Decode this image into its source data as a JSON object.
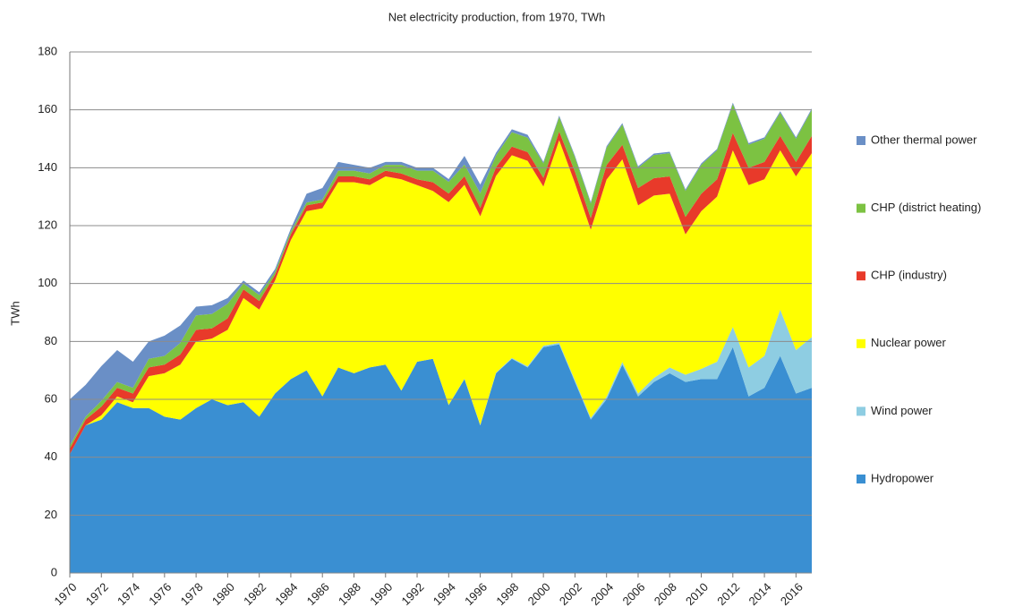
{
  "chart_data": {
    "type": "stacked_area",
    "title": "Net electricity production, from 1970, TWh",
    "y_label": "TWh",
    "x": [
      1970,
      1971,
      1972,
      1973,
      1974,
      1975,
      1976,
      1977,
      1978,
      1979,
      1980,
      1981,
      1982,
      1983,
      1984,
      1985,
      1986,
      1987,
      1988,
      1989,
      1990,
      1991,
      1992,
      1993,
      1994,
      1995,
      1996,
      1997,
      1998,
      1999,
      2000,
      2001,
      2002,
      2003,
      2004,
      2005,
      2006,
      2007,
      2008,
      2009,
      2010,
      2011,
      2012,
      2013,
      2014,
      2015,
      2016,
      2017
    ],
    "xlim": [
      1970,
      2017
    ],
    "xticks": [
      1970,
      1972,
      1974,
      1976,
      1978,
      1980,
      1982,
      1984,
      1986,
      1988,
      1990,
      1992,
      1994,
      1996,
      1998,
      2000,
      2002,
      2004,
      2006,
      2008,
      2010,
      2012,
      2014,
      2016
    ],
    "ylim": [
      0,
      180
    ],
    "yticks": [
      0,
      20,
      40,
      60,
      80,
      100,
      120,
      140,
      160,
      180
    ],
    "grid": true,
    "legend": "right",
    "series": [
      {
        "name": "Hydropower",
        "color": "#3a8fd2",
        "values": [
          41,
          51,
          53,
          59,
          57,
          57,
          54,
          53,
          57,
          60,
          58,
          59,
          54,
          62,
          67,
          70,
          61,
          71,
          69,
          71,
          72,
          63,
          73,
          74,
          58,
          67,
          51,
          69,
          74,
          71,
          78,
          79,
          66,
          53,
          60,
          72,
          61,
          66,
          69,
          66,
          67,
          67,
          78,
          61,
          64,
          75,
          62,
          64
        ]
      },
      {
        "name": "Wind power",
        "color": "#8ecde2",
        "values": [
          0,
          0,
          0,
          0,
          0,
          0,
          0,
          0,
          0,
          0,
          0,
          0,
          0,
          0,
          0,
          0,
          0,
          0,
          0,
          0,
          0,
          0,
          0,
          0,
          0.1,
          0.1,
          0.2,
          0.2,
          0.3,
          0.4,
          0.5,
          0.5,
          0.6,
          0.6,
          0.9,
          0.9,
          1,
          1.4,
          2,
          2.5,
          3.5,
          6,
          7,
          10,
          11,
          16,
          15,
          17.5
        ]
      },
      {
        "name": "Nuclear power",
        "color": "#ffff00",
        "values": [
          0,
          0,
          1.5,
          2,
          2,
          11,
          15,
          19,
          23,
          21,
          26,
          36,
          37,
          39,
          48,
          55,
          65,
          64,
          66,
          63,
          65,
          73,
          61,
          58,
          70,
          67,
          72,
          68,
          70,
          71,
          55,
          70,
          68,
          65,
          75,
          70,
          65,
          63,
          60,
          48.5,
          54.5,
          57,
          61,
          63,
          61,
          55,
          60,
          63.5
        ]
      },
      {
        "name": "CHP (industry)",
        "color": "#e83a2a",
        "values": [
          2,
          2,
          3,
          3,
          3,
          3,
          3,
          3.5,
          4,
          3.5,
          4,
          3,
          3,
          2,
          2,
          2,
          2,
          2,
          2,
          2,
          2,
          2,
          2,
          3,
          3,
          3,
          3,
          3,
          3,
          3,
          3,
          3,
          4,
          4,
          5,
          5,
          6,
          6,
          6,
          6,
          6,
          6,
          6,
          6,
          6,
          5,
          5,
          6
        ]
      },
      {
        "name": "CHP (district heating)",
        "color": "#7cc242",
        "values": [
          1,
          1,
          2,
          2,
          2,
          3,
          3,
          4,
          5,
          5,
          5,
          2,
          2,
          1,
          1,
          1,
          1,
          2,
          2,
          2,
          2,
          3,
          3,
          4,
          4,
          4,
          5,
          4,
          5,
          5,
          5,
          5,
          5,
          5,
          6,
          7,
          7,
          8,
          8,
          9,
          10,
          10,
          10,
          8,
          8,
          8,
          8,
          9
        ]
      },
      {
        "name": "Other thermal power",
        "color": "#6a8fc6",
        "values": [
          16,
          11,
          12,
          11,
          9,
          6,
          7,
          6,
          3,
          3,
          2,
          1,
          1,
          1,
          1,
          3,
          4,
          3,
          2,
          2,
          1,
          1,
          1,
          1,
          1,
          3,
          3,
          1,
          1,
          1,
          0.5,
          0.5,
          0.5,
          0.5,
          0.5,
          0.5,
          0.5,
          0.5,
          0.5,
          0.5,
          0.5,
          0.5,
          0.5,
          0.5,
          0.5,
          0.5,
          0.5,
          0.5
        ]
      }
    ]
  }
}
